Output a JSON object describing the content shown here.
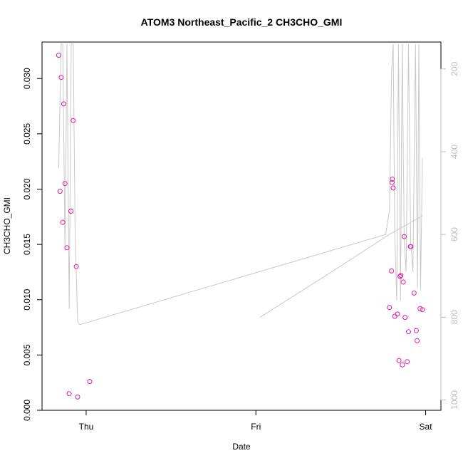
{
  "chart_data": {
    "type": "scatter",
    "title": "ATOM3 Northeast_Pacific_2 CH3CHO_GMI",
    "xlabel": "Date",
    "ylabel": "CH3CHO_GMI",
    "x_ticks": [
      {
        "value": 1.0,
        "label": "Thu"
      },
      {
        "value": 2.0,
        "label": "Fri"
      },
      {
        "value": 3.0,
        "label": "Sat"
      }
    ],
    "xlim": [
      0.74,
      3.09
    ],
    "ylim": [
      0,
      0.0333
    ],
    "y_ticks": [
      0.0,
      0.005,
      0.01,
      0.015,
      0.02,
      0.025,
      0.03
    ],
    "y_tick_labels": [
      "0.000",
      "0.005",
      "0.010",
      "0.015",
      "0.020",
      "0.025",
      "0.030"
    ],
    "y2_label": "",
    "y2_range_reversed": [
      1025,
      135
    ],
    "y2_ticks": [
      200,
      400,
      600,
      800,
      1000
    ],
    "y2_tick_labels": [
      "200",
      "400",
      "600",
      "800",
      "1000"
    ],
    "grid": false,
    "marker_color": "#e8179b",
    "line_color": "#c8c8c8",
    "series": [
      {
        "kind": "points",
        "x": [
          0.838,
          0.846,
          0.853,
          0.862,
          0.868,
          0.875,
          0.887,
          0.9,
          0.91,
          0.924,
          0.942,
          0.95,
          1.021,
          2.787,
          2.799,
          2.802,
          2.804,
          2.809,
          2.818,
          2.834,
          2.843,
          2.849,
          2.854,
          2.863,
          2.868,
          2.874,
          2.879,
          2.891,
          2.899,
          2.91,
          2.913,
          2.932,
          2.945,
          2.95,
          2.967,
          2.981
        ],
        "y": [
          0.0321,
          0.0198,
          0.0301,
          0.017,
          0.0277,
          0.0205,
          0.0147,
          0.0015,
          0.018,
          0.0262,
          0.013,
          0.0012,
          0.0026,
          0.0093,
          0.0126,
          0.0206,
          0.0209,
          0.0201,
          0.0085,
          0.0087,
          0.0045,
          0.0121,
          0.0122,
          0.0041,
          0.0116,
          0.0157,
          0.0084,
          0.0044,
          0.0071,
          0.0148,
          0.0148,
          0.0106,
          0.0072,
          0.0063,
          0.0092,
          0.0091
        ]
      },
      {
        "kind": "line",
        "axis": "y2",
        "segments": [
          {
            "x": [
              0.838,
              0.853,
              0.862,
              0.875,
              0.887,
              0.9,
              0.912,
              0.924,
              0.935,
              0.95,
              0.962,
              2.765,
              2.787,
              2.799,
              2.809,
              2.818,
              2.83,
              2.84,
              2.852,
              2.862,
              2.874,
              2.885,
              2.899,
              2.912,
              2.925,
              2.94,
              2.952,
              2.96,
              2.97,
              2.981
            ],
            "y": [
              440,
              140,
              140,
              640,
              140,
              780,
              140,
              140,
              600,
              810,
              818,
              600,
              540,
              210,
              140,
              600,
              760,
              140,
              760,
              140,
              620,
              690,
              140,
              620,
              690,
              140,
              730,
              140,
              735,
              415
            ]
          },
          {
            "x": [
              2.025,
              2.41,
              2.787,
              2.981
            ],
            "y": [
              800,
              700,
              600,
              555
            ]
          }
        ]
      }
    ]
  }
}
